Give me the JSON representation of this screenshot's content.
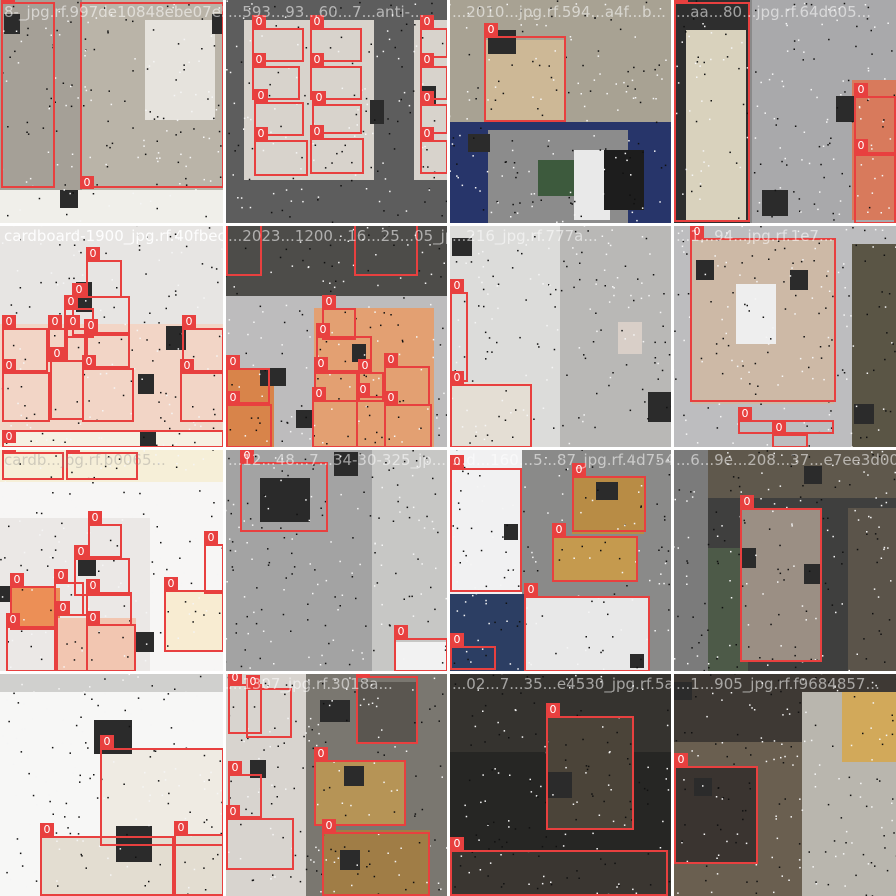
{
  "mosaic": {
    "tiles": [
      {
        "title": "8-_jpg.rf.997de10848ebe07e59...",
        "boxes": []
      },
      {
        "title": "...593...93...60...7...anti-...",
        "boxes": []
      },
      {
        "title": "...2010...jpg.rf.594...a4f...b...",
        "boxes": []
      },
      {
        "title": "...aa...80...jpg.rf.64d605...",
        "boxes": []
      },
      {
        "title": "cardboard-1900_jpg.rf.40fbec...",
        "boxes": []
      },
      {
        "title": "...2023...1200...16...25...05_jpg.rf.fd3...",
        "boxes": []
      },
      {
        "title": "...216_jpg.rf.777a...",
        "boxes": []
      },
      {
        "title": "...1...94...jpg.rf.1e7...",
        "boxes": []
      },
      {
        "title": "cardb...jpg.rf.b0065...",
        "boxes": []
      },
      {
        "title": "...12...48...7...34-30-325_jp...",
        "boxes": []
      },
      {
        "title": "...d...160...5...87_jpg.rf.4d754c7...",
        "boxes": []
      },
      {
        "title": "...6...9e...208...37...e7ee3d00d8c...",
        "boxes": []
      },
      {
        "title": "",
        "boxes": []
      },
      {
        "title": "...1307_jpg.rf.3018a...",
        "boxes": []
      },
      {
        "title": "...02...7...35...e4530_jpg.rf.5af...",
        "boxes": []
      },
      {
        "title": "...1...905_jpg.rf.f9684857...",
        "boxes": []
      }
    ],
    "box_label": "0",
    "box_color": "#e8403f"
  }
}
